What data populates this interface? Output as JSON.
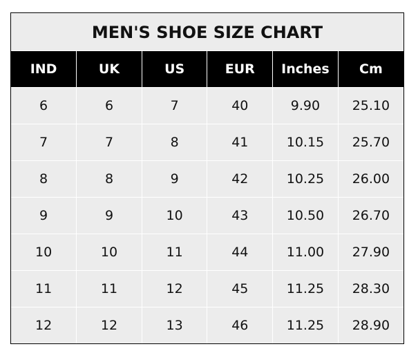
{
  "title": "MEN'S SHOE SIZE CHART",
  "columns": [
    "IND",
    "UK",
    "US",
    "EUR",
    "Inches",
    "Cm"
  ],
  "rows": [
    [
      "6",
      "6",
      "7",
      "40",
      "9.90",
      "25.10"
    ],
    [
      "7",
      "7",
      "8",
      "41",
      "10.15",
      "25.70"
    ],
    [
      "8",
      "8",
      "9",
      "42",
      "10.25",
      "26.00"
    ],
    [
      "9",
      "9",
      "10",
      "43",
      "10.50",
      "26.70"
    ],
    [
      "10",
      "10",
      "11",
      "44",
      "11.00",
      "27.90"
    ],
    [
      "11",
      "11",
      "12",
      "45",
      "11.25",
      "28.30"
    ],
    [
      "12",
      "12",
      "13",
      "46",
      "11.25",
      "28.90"
    ]
  ],
  "colors": {
    "header_bg": "#000000",
    "header_text": "#ffffff",
    "cell_bg": "#ececec",
    "grid": "#ffffff"
  }
}
